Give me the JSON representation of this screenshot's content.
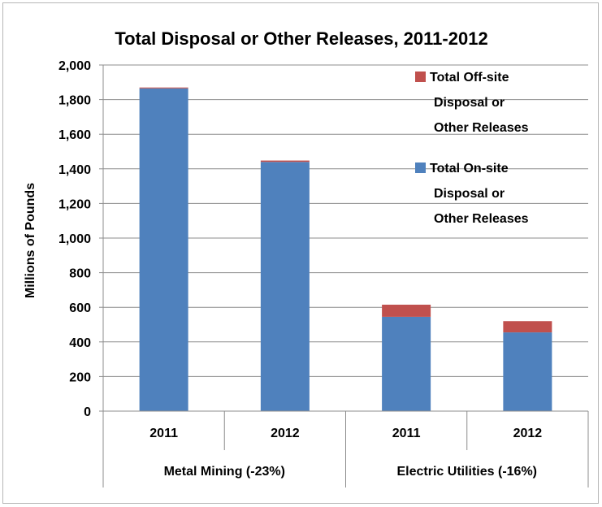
{
  "chart_data": {
    "type": "bar",
    "stacked": true,
    "title": "Total Disposal or Other Releases, 2011-2012",
    "ylabel": "Millions of Pounds",
    "ylim": [
      0,
      2000
    ],
    "ytick_step": 200,
    "yticks": [
      "0",
      "200",
      "400",
      "600",
      "800",
      "1,000",
      "1,200",
      "1,400",
      "1,600",
      "1,800",
      "2,000"
    ],
    "categories": [
      "2011",
      "2012",
      "2011",
      "2012"
    ],
    "groups": [
      {
        "label": "Metal Mining (-23%)",
        "span": 2
      },
      {
        "label": "Electric Utilities (-16%)",
        "span": 2
      }
    ],
    "series": [
      {
        "name": "Total On-site Disposal or Other Releases",
        "legend_lines": [
          "Total On-site",
          "Disposal or",
          "Other Releases"
        ],
        "color": "#4f81bd",
        "values": [
          1865,
          1440,
          545,
          455
        ]
      },
      {
        "name": "Total Off-site Disposal or Other Releases",
        "legend_lines": [
          "Total Off-site",
          "Disposal or",
          "Other Releases"
        ],
        "color": "#c0504d",
        "values": [
          5,
          8,
          70,
          65
        ]
      }
    ],
    "grid": true,
    "legend_position": "top-right"
  }
}
